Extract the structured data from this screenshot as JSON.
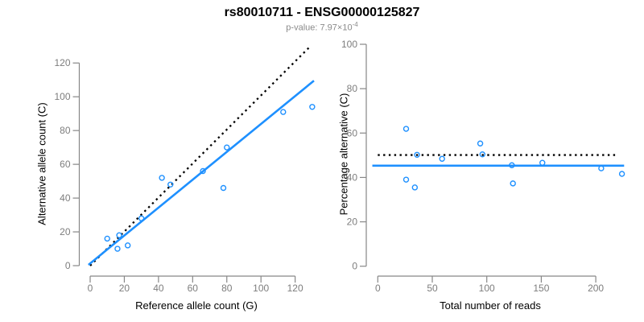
{
  "header": {
    "title": "rs80010711 - ENSG00000125827",
    "pvalue_label": "p-value: 7.97×10",
    "pvalue_exponent": "-4"
  },
  "colors": {
    "accent_blue": "#1E90FF",
    "line_black": "#000000",
    "axis_gray": "#878787",
    "tick_text_gray": "#7d7d7d",
    "subtitle_gray": "#8a8a8a"
  },
  "chart_data": [
    {
      "type": "scatter",
      "title": "rs80010711 - ENSG00000125827",
      "xlabel": "Reference allele count (G)",
      "ylabel": "Alternative allele count (C)",
      "xticks": [
        0,
        20,
        40,
        60,
        80,
        100,
        120
      ],
      "yticks": [
        0,
        20,
        40,
        60,
        80,
        100,
        120
      ],
      "xlim": [
        -6,
        134
      ],
      "ylim": [
        -6,
        132
      ],
      "grid": false,
      "legend": "none",
      "points": [
        [
          10,
          16
        ],
        [
          17,
          18
        ],
        [
          16,
          10
        ],
        [
          22,
          12
        ],
        [
          30,
          28
        ],
        [
          42,
          52
        ],
        [
          47,
          48
        ],
        [
          66,
          56
        ],
        [
          78,
          46
        ],
        [
          80,
          70
        ],
        [
          113,
          91
        ],
        [
          130,
          94
        ]
      ],
      "lines": [
        {
          "name": "identity-line",
          "style": "dashed",
          "color": "#000000",
          "x1": 0,
          "y1": 0,
          "x2": 128.5,
          "y2": 129.5
        },
        {
          "name": "fit-line",
          "style": "solid",
          "color": "#1E90FF",
          "x1": -1,
          "y1": 0.5,
          "x2": 131,
          "y2": 109.5
        }
      ]
    },
    {
      "type": "scatter",
      "title": "rs80010711 - ENSG00000125827",
      "xlabel": "Total number of reads",
      "ylabel": "Percentage alternative (C)",
      "xticks": [
        0,
        50,
        100,
        150,
        200
      ],
      "yticks": [
        0,
        20,
        40,
        60,
        80,
        100
      ],
      "xlim": [
        -10,
        232
      ],
      "ylim": [
        -7,
        103
      ],
      "grid": false,
      "legend": "none",
      "points": [
        [
          26,
          61.9
        ],
        [
          36,
          50.2
        ],
        [
          26,
          39
        ],
        [
          34,
          35.5
        ],
        [
          59,
          48.4
        ],
        [
          94,
          55.3
        ],
        [
          96,
          50.4
        ],
        [
          123,
          45.5
        ],
        [
          124,
          37.3
        ],
        [
          151,
          46.6
        ],
        [
          205,
          44.1
        ],
        [
          224,
          41.6
        ]
      ],
      "lines": [
        {
          "name": "expected-50pct-line",
          "style": "dashed",
          "color": "#000000",
          "x1": 0,
          "y1": 50.1,
          "x2": 220,
          "y2": 50.1
        },
        {
          "name": "mean-percentage-line",
          "style": "solid",
          "color": "#1E90FF",
          "x1": -5,
          "y1": 45.3,
          "x2": 226,
          "y2": 45.3
        }
      ]
    }
  ]
}
